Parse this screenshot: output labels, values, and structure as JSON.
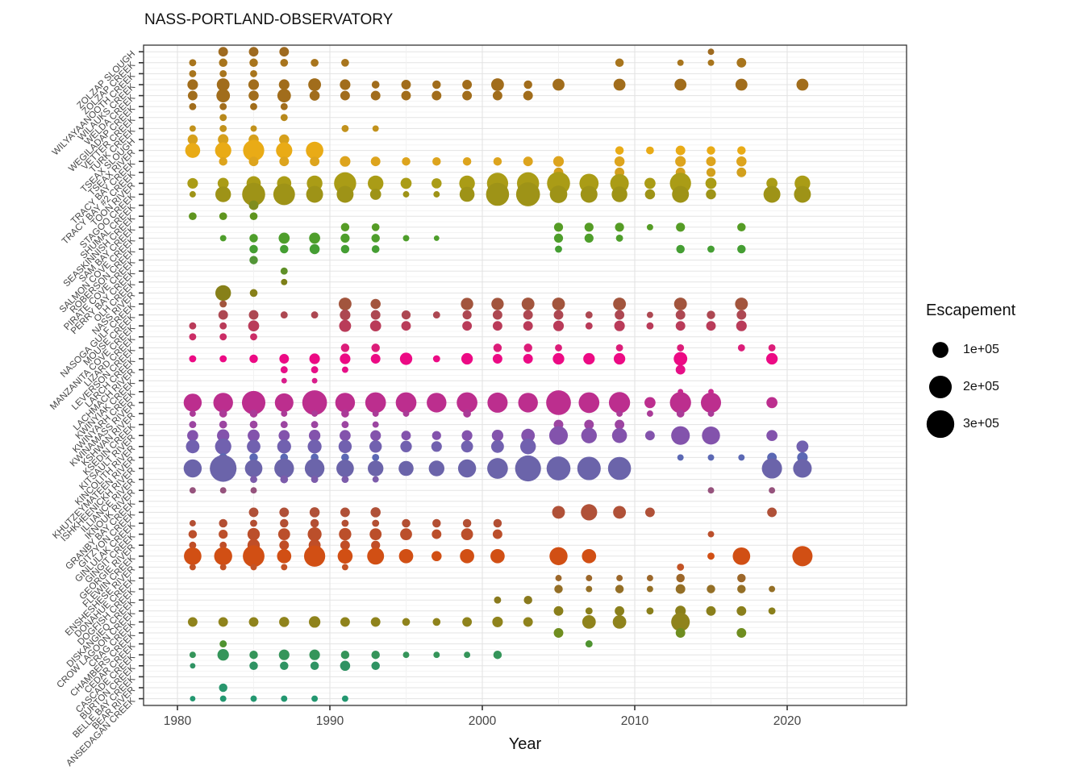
{
  "title": "NASS-PORTLAND-OBSERVATORY",
  "x_axis": {
    "label": "Year",
    "ticks": [
      1980,
      1990,
      2000,
      2010,
      2020
    ],
    "minor_ticks": [
      1985,
      1995,
      2005,
      2015,
      2025
    ],
    "range": [
      1977.8,
      2027.8
    ]
  },
  "legend": {
    "title": "Escapement",
    "items": [
      {
        "label": "1e+05",
        "value": 100000
      },
      {
        "label": "2e+05",
        "value": 200000
      },
      {
        "label": "3e+05",
        "value": 300000
      }
    ]
  },
  "chart_data": {
    "type": "scatter",
    "subtype": "bubble",
    "title": "NASS-PORTLAND-OBSERVATORY",
    "xlabel": "Year",
    "size_label": "Escapement",
    "size_legend_values": [
      100000,
      200000,
      300000
    ],
    "grid": "on",
    "rivers": [
      {
        "name": "ZOLZAP SLOUGH",
        "color": "#9e6a1f",
        "points": {
          "1983": 45000,
          "1985": 45000,
          "1987": 45000,
          "2015": 20000
        }
      },
      {
        "name": "ZOLZAP CREEK",
        "color": "#a8751d",
        "points": {
          "1981": 25000,
          "1983": 35000,
          "1985": 35000,
          "1987": 30000,
          "1989": 30000,
          "1991": 30000,
          "2009": 35000,
          "2013": 20000,
          "2015": 20000,
          "2017": 45000
        }
      },
      {
        "name": "WILYAYAANOOTH CREEK",
        "color": "#a8751d",
        "points": {
          "1981": 25000,
          "1983": 25000,
          "1985": 25000
        }
      },
      {
        "name": "WILAUKS CREEK",
        "color": "#a16d1c",
        "points": {
          "1981": 55000,
          "1983": 80000,
          "1985": 55000,
          "1987": 55000,
          "1989": 80000,
          "1991": 55000,
          "1993": 30000,
          "1995": 45000,
          "1997": 35000,
          "1999": 45000,
          "2001": 80000,
          "2003": 35000,
          "2005": 70000,
          "2009": 70000,
          "2013": 70000,
          "2017": 70000,
          "2021": 70000
        }
      },
      {
        "name": "WELDA CREEK",
        "color": "#a16d1c",
        "points": {
          "1981": 45000,
          "1983": 90000,
          "1985": 50000,
          "1987": 90000,
          "1989": 50000,
          "1991": 45000,
          "1993": 45000,
          "1995": 45000,
          "1997": 45000,
          "1999": 45000,
          "2001": 45000,
          "2003": 45000
        }
      },
      {
        "name": "WEGILADAP CREEK",
        "color": "#a16d1c",
        "points": {
          "1981": 25000,
          "1983": 25000,
          "1985": 25000,
          "1987": 25000
        }
      },
      {
        "name": "VETTER CREEK",
        "color": "#b8891b",
        "points": {
          "1983": 25000,
          "1987": 25000
        }
      },
      {
        "name": "TURK CREEK",
        "color": "#c2921c",
        "points": {
          "1981": 20000,
          "1983": 25000,
          "1985": 20000,
          "1991": 25000,
          "1993": 20000
        }
      },
      {
        "name": "TSEAX SLOUGH",
        "color": "#d6a01c",
        "points": {
          "1981": 50000,
          "1983": 55000,
          "1985": 50000,
          "1987": 50000
        }
      },
      {
        "name": "TSEAX RIVER",
        "color": "#e9ab16",
        "points": {
          "1981": 110000,
          "1983": 130000,
          "1985": 220000,
          "1987": 130000,
          "1989": 150000,
          "2009": 35000,
          "2011": 30000,
          "2013": 45000,
          "2015": 35000,
          "2017": 35000
        }
      },
      {
        "name": "TRACY BAY CREEK",
        "color": "#dda41d",
        "points": {
          "1983": 35000,
          "1985": 45000,
          "1987": 45000,
          "1989": 45000,
          "1991": 55000,
          "1993": 45000,
          "1995": 35000,
          "1997": 35000,
          "1999": 35000,
          "2001": 35000,
          "2003": 45000,
          "2005": 55000,
          "2009": 50000,
          "2013": 55000,
          "2015": 45000,
          "2017": 50000
        }
      },
      {
        "name": "TRACY BAY #2 CREEK",
        "color": "#d2a01d",
        "points": {
          "2005": 45000,
          "2009": 45000,
          "2013": 45000,
          "2015": 40000,
          "2017": 45000
        }
      },
      {
        "name": "TOON RIVER",
        "color": "#aa9c16",
        "points": {
          "1981": 55000,
          "1983": 60000,
          "1985": 100000,
          "1987": 100000,
          "1989": 120000,
          "1991": 240000,
          "1993": 120000,
          "1995": 60000,
          "1997": 50000,
          "1999": 120000,
          "2001": 220000,
          "2003": 240000,
          "2005": 260000,
          "2007": 180000,
          "2009": 170000,
          "2011": 60000,
          "2013": 220000,
          "2015": 60000,
          "2019": 60000,
          "2021": 120000
        }
      },
      {
        "name": "STAGOO CREEK",
        "color": "#9e9317",
        "points": {
          "1981": 20000,
          "1983": 120000,
          "1985": 260000,
          "1987": 230000,
          "1989": 140000,
          "1991": 140000,
          "1993": 60000,
          "1995": 20000,
          "1997": 20000,
          "1999": 110000,
          "2001": 260000,
          "2003": 280000,
          "2005": 150000,
          "2007": 140000,
          "2009": 120000,
          "2011": 50000,
          "2013": 140000,
          "2015": 50000,
          "2019": 140000,
          "2021": 140000
        }
      },
      {
        "name": "SHUMAL CREEK",
        "color": "#7f8c1e",
        "points": {
          "1985": 45000
        }
      },
      {
        "name": "SEASKINNISH CREEK",
        "color": "#5f951f",
        "points": {
          "1981": 30000,
          "1983": 30000,
          "1985": 30000
        }
      },
      {
        "name": "SAM BAY CREEK",
        "color": "#559c25",
        "points": {
          "1991": 35000,
          "1993": 30000,
          "2005": 40000,
          "2007": 40000,
          "2009": 40000,
          "2011": 20000,
          "2013": 40000,
          "2017": 35000
        }
      },
      {
        "name": "SALMON COVE CREEK",
        "color": "#4e9e2b",
        "points": {
          "1983": 20000,
          "1985": 35000,
          "1987": 60000,
          "1989": 60000,
          "1991": 40000,
          "1993": 35000,
          "1995": 20000,
          "1997": 15000,
          "2005": 40000,
          "2007": 40000,
          "2009": 25000
        }
      },
      {
        "name": "ROBERSON CREEK",
        "color": "#459e33",
        "points": {
          "1985": 35000,
          "1987": 35000,
          "1989": 50000,
          "1991": 35000,
          "1993": 30000,
          "2005": 25000,
          "2013": 35000,
          "2015": 25000,
          "2017": 35000
        }
      },
      {
        "name": "PIRATE COVE CREEK",
        "color": "#529537",
        "points": {
          "1985": 35000
        }
      },
      {
        "name": "PERRY BAY CREEK",
        "color": "#5f9028",
        "points": {
          "1987": 25000
        }
      },
      {
        "name": "OLH CREEK",
        "color": "#7d7f18",
        "points": {
          "1987": 20000
        }
      },
      {
        "name": "NASS RIVER",
        "color": "#878019",
        "points": {
          "1983": 120000,
          "1985": 30000
        }
      },
      {
        "name": "NASOGA GULF CREEK",
        "color": "#a2553d",
        "points": {
          "1983": 25000,
          "1991": 80000,
          "1993": 50000,
          "1999": 75000,
          "2001": 75000,
          "2003": 80000,
          "2005": 80000,
          "2009": 80000,
          "2013": 80000,
          "2017": 80000
        }
      },
      {
        "name": "MOUSE CREEK",
        "color": "#ad4852",
        "points": {
          "1983": 45000,
          "1985": 45000,
          "1987": 25000,
          "1989": 25000,
          "1991": 55000,
          "1993": 45000,
          "1995": 40000,
          "1997": 25000,
          "1999": 40000,
          "2001": 45000,
          "2003": 45000,
          "2005": 45000,
          "2007": 25000,
          "2009": 45000,
          "2011": 20000,
          "2013": 45000,
          "2015": 35000,
          "2017": 45000
        }
      },
      {
        "name": "MANZANITA COVE CREEK",
        "color": "#b93b59",
        "points": {
          "1981": 25000,
          "1983": 25000,
          "1985": 60000,
          "1991": 70000,
          "1993": 60000,
          "1995": 45000,
          "1999": 45000,
          "2001": 45000,
          "2003": 45000,
          "2005": 55000,
          "2007": 25000,
          "2009": 55000,
          "2011": 25000,
          "2013": 45000,
          "2015": 45000,
          "2017": 55000
        }
      },
      {
        "name": "LIZARD CREEK",
        "color": "#cb2d66",
        "points": {
          "1981": 25000,
          "1983": 25000,
          "1985": 25000
        }
      },
      {
        "name": "LEVERSON CREEK",
        "color": "#dc1d79",
        "points": {
          "1991": 35000,
          "1993": 35000,
          "2001": 35000,
          "2003": 35000,
          "2005": 25000,
          "2009": 25000,
          "2013": 25000,
          "2017": 25000,
          "2019": 25000
        }
      },
      {
        "name": "LARCH CREEK",
        "color": "#ec0a84",
        "points": {
          "1981": 25000,
          "1983": 25000,
          "1985": 35000,
          "1987": 45000,
          "1989": 55000,
          "1991": 55000,
          "1993": 45000,
          "1995": 75000,
          "1997": 25000,
          "1999": 65000,
          "2001": 45000,
          "2003": 45000,
          "2005": 65000,
          "2007": 65000,
          "2009": 65000,
          "2013": 90000,
          "2019": 65000
        }
      },
      {
        "name": "LACHMACH RIVER",
        "color": "#e60f87",
        "points": {
          "1987": 25000,
          "1989": 25000,
          "1991": 20000,
          "2013": 45000
        }
      },
      {
        "name": "KWINYIAK CREEK",
        "color": "#d81e8b",
        "points": {
          "1987": 15000,
          "1989": 15000
        }
      },
      {
        "name": "KWINYARH CREEK",
        "color": "#cb278f",
        "points": {
          "2013": 15000,
          "2015": 15000
        }
      },
      {
        "name": "KWINAMASS RIVER",
        "color": "#bc2e8e",
        "points": {
          "1981": 160000,
          "1983": 190000,
          "1985": 270000,
          "1987": 170000,
          "1989": 300000,
          "1991": 190000,
          "1993": 210000,
          "1995": 210000,
          "1997": 190000,
          "1999": 210000,
          "2001": 200000,
          "2003": 190000,
          "2005": 300000,
          "2007": 210000,
          "2009": 220000,
          "2011": 60000,
          "2013": 220000,
          "2015": 200000,
          "2019": 60000
        }
      },
      {
        "name": "KSHWAN RIVER",
        "color": "#aa3a97",
        "points": {
          "1981": 20000,
          "1983": 30000,
          "1985": 30000,
          "1987": 20000,
          "1989": 20000,
          "1991": 30000,
          "1993": 20000,
          "1995": 20000,
          "1999": 30000,
          "2009": 20000,
          "2011": 20000,
          "2013": 30000,
          "2015": 20000
        }
      },
      {
        "name": "KSEDIN CREEK",
        "color": "#9c45a1",
        "points": {
          "1981": 25000,
          "1983": 30000,
          "1985": 30000,
          "1987": 25000,
          "1989": 25000,
          "1991": 25000,
          "1993": 20000,
          "2005": 45000,
          "2007": 45000,
          "2009": 45000
        }
      },
      {
        "name": "KITSAULT RIVER",
        "color": "#8353ac",
        "points": {
          "1981": 60000,
          "1983": 75000,
          "1985": 70000,
          "1987": 60000,
          "1989": 65000,
          "1991": 60000,
          "1993": 55000,
          "1995": 45000,
          "1997": 40000,
          "1999": 55000,
          "2001": 65000,
          "2003": 90000,
          "2005": 170000,
          "2007": 120000,
          "2009": 110000,
          "2011": 45000,
          "2013": 170000,
          "2015": 160000,
          "2019": 60000
        }
      },
      {
        "name": "KINCOLITH RIVER",
        "color": "#7161af",
        "points": {
          "1981": 90000,
          "1983": 130000,
          "1985": 90000,
          "1987": 95000,
          "1989": 95000,
          "1991": 85000,
          "1993": 75000,
          "1995": 65000,
          "1997": 55000,
          "1999": 70000,
          "2001": 80000,
          "2003": 120000,
          "2021": 70000
        }
      },
      {
        "name": "KHUTZEYMATEEN RIVER",
        "color": "#5b68b4",
        "points": {
          "1983": 35000,
          "1985": 35000,
          "1987": 30000,
          "1989": 30000,
          "1991": 30000,
          "1993": 25000,
          "2013": 20000,
          "2015": 20000,
          "2017": 20000,
          "2019": 45000,
          "2021": 55000
        }
      },
      {
        "name": "ISHKHEENICKH RIVER",
        "color": "#6b64aa",
        "points": {
          "1981": 160000,
          "1983": 350000,
          "1985": 150000,
          "1987": 190000,
          "1989": 190000,
          "1991": 150000,
          "1993": 120000,
          "1995": 110000,
          "1997": 120000,
          "1999": 160000,
          "2001": 210000,
          "2003": 330000,
          "2005": 280000,
          "2007": 270000,
          "2009": 260000,
          "2019": 200000,
          "2021": 170000
        }
      },
      {
        "name": "ILLIANCE RIVER",
        "color": "#7c5cab",
        "points": {
          "1985": 25000,
          "1987": 30000,
          "1989": 25000,
          "1991": 25000,
          "1993": 20000
        }
      },
      {
        "name": "IKNOUK RIVER",
        "color": "#96537d",
        "points": {
          "1981": 20000,
          "1983": 20000,
          "1985": 20000,
          "2015": 20000,
          "2019": 20000
        }
      },
      {
        "name": "GRANBY BAY CREEK",
        "color": "#a1506d",
        "points": {}
      },
      {
        "name": "GITZYON CREEK",
        "color": "#b05138",
        "points": {
          "1985": 45000,
          "1987": 45000,
          "1989": 50000,
          "1991": 45000,
          "1993": 50000,
          "2005": 80000,
          "2007": 130000,
          "2009": 80000,
          "2011": 45000,
          "2019": 45000
        }
      },
      {
        "name": "GINLULAK CREEK",
        "color": "#b34f33",
        "points": {
          "1981": 20000,
          "1983": 35000,
          "1985": 25000,
          "1987": 35000,
          "1989": 35000,
          "1991": 25000,
          "1993": 25000,
          "1995": 35000,
          "1997": 35000,
          "1999": 35000,
          "2001": 35000
        }
      },
      {
        "name": "GINGIT CREEK",
        "color": "#bb4f2b",
        "points": {
          "1981": 35000,
          "1983": 40000,
          "1985": 75000,
          "1987": 70000,
          "1989": 95000,
          "1991": 75000,
          "1993": 70000,
          "1995": 70000,
          "1997": 45000,
          "1999": 70000,
          "2001": 45000,
          "2015": 20000
        }
      },
      {
        "name": "GEORGIE RIVER",
        "color": "#c04e27",
        "points": {
          "1981": 25000,
          "1983": 25000,
          "1985": 75000,
          "1987": 45000,
          "1989": 70000,
          "1991": 45000,
          "1993": 40000
        }
      },
      {
        "name": "FLEWIN CREEK",
        "color": "#d14f14",
        "points": {
          "1981": 150000,
          "1983": 160000,
          "1985": 230000,
          "1987": 100000,
          "1989": 220000,
          "1991": 110000,
          "1993": 140000,
          "1995": 100000,
          "1997": 50000,
          "1999": 100000,
          "2001": 100000,
          "2005": 160000,
          "2007": 100000,
          "2015": 25000,
          "2017": 150000,
          "2021": 200000
        }
      },
      {
        "name": "ENSHESHESE RIVER",
        "color": "#c35325",
        "points": {
          "1981": 20000,
          "1983": 20000,
          "1985": 20000,
          "1987": 20000,
          "1991": 20000,
          "2013": 25000
        }
      },
      {
        "name": "DONAHUE CREEK",
        "color": "#9d672a",
        "points": {
          "2005": 20000,
          "2007": 20000,
          "2009": 20000,
          "2011": 20000,
          "2013": 35000,
          "2017": 35000
        }
      },
      {
        "name": "DOGFISH CREEK",
        "color": "#946f26",
        "points": {
          "2005": 35000,
          "2007": 20000,
          "2009": 35000,
          "2011": 20000,
          "2013": 45000,
          "2015": 35000,
          "2017": 35000,
          "2019": 20000
        }
      },
      {
        "name": "DISKANGIEQ CREEK",
        "color": "#8a7a1e",
        "points": {
          "2001": 25000,
          "2003": 35000
        }
      },
      {
        "name": "CROW LAGOON CREEK",
        "color": "#8a7f1b",
        "points": {
          "2005": 45000,
          "2007": 25000,
          "2009": 45000,
          "2011": 25000,
          "2013": 55000,
          "2015": 45000,
          "2017": 45000,
          "2019": 25000
        }
      },
      {
        "name": "CRAG CREEK",
        "color": "#8f831c",
        "points": {
          "1981": 45000,
          "1983": 45000,
          "1985": 45000,
          "1987": 50000,
          "1989": 65000,
          "1991": 45000,
          "1993": 45000,
          "1995": 30000,
          "1997": 30000,
          "1999": 45000,
          "2001": 55000,
          "2003": 45000,
          "2007": 90000,
          "2009": 90000,
          "2013": 170000
        }
      },
      {
        "name": "CHAMBERS CREEK",
        "color": "#6f8d1f",
        "points": {
          "2005": 45000,
          "2013": 45000,
          "2017": 45000
        }
      },
      {
        "name": "CEDAR CREEK",
        "color": "#4f9330",
        "points": {
          "1983": 25000,
          "2007": 25000
        }
      },
      {
        "name": "CASCADE CREEK",
        "color": "#35955a",
        "points": {
          "1981": 20000,
          "1983": 65000,
          "1985": 35000,
          "1987": 55000,
          "1989": 55000,
          "1991": 35000,
          "1993": 35000,
          "1995": 20000,
          "1997": 20000,
          "1999": 20000,
          "2001": 35000
        }
      },
      {
        "name": "BURTON CREEK",
        "color": "#2f9363",
        "points": {
          "1981": 15000,
          "1985": 35000,
          "1987": 35000,
          "1989": 35000,
          "1991": 50000,
          "1993": 35000
        }
      },
      {
        "name": "BELLE BAY CREEK",
        "color": "#2a9668",
        "points": {}
      },
      {
        "name": "BEAR RIVER",
        "color": "#28966d",
        "points": {
          "1983": 35000
        }
      },
      {
        "name": "ANSEDAGAN CREEK",
        "color": "#239770",
        "points": {
          "1981": 15000,
          "1983": 20000,
          "1985": 20000,
          "1987": 20000,
          "1989": 20000,
          "1991": 20000
        }
      }
    ]
  }
}
